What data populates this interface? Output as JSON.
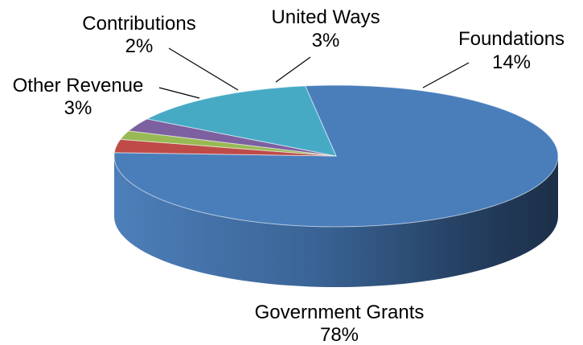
{
  "chart_data": {
    "type": "pie",
    "three_d": true,
    "legend": "none",
    "slices": [
      {
        "name": "Government Grants",
        "value": 78,
        "label": "78%",
        "color": "#4a7ebb"
      },
      {
        "name": "Other Revenue",
        "value": 3,
        "label": "3%",
        "color": "#be4b48"
      },
      {
        "name": "Contributions",
        "value": 2,
        "label": "2%",
        "color": "#98b954"
      },
      {
        "name": "United Ways",
        "value": 3,
        "label": "3%",
        "color": "#7d60a0"
      },
      {
        "name": "Foundations",
        "value": 14,
        "label": "14%",
        "color": "#46aac5"
      }
    ]
  }
}
